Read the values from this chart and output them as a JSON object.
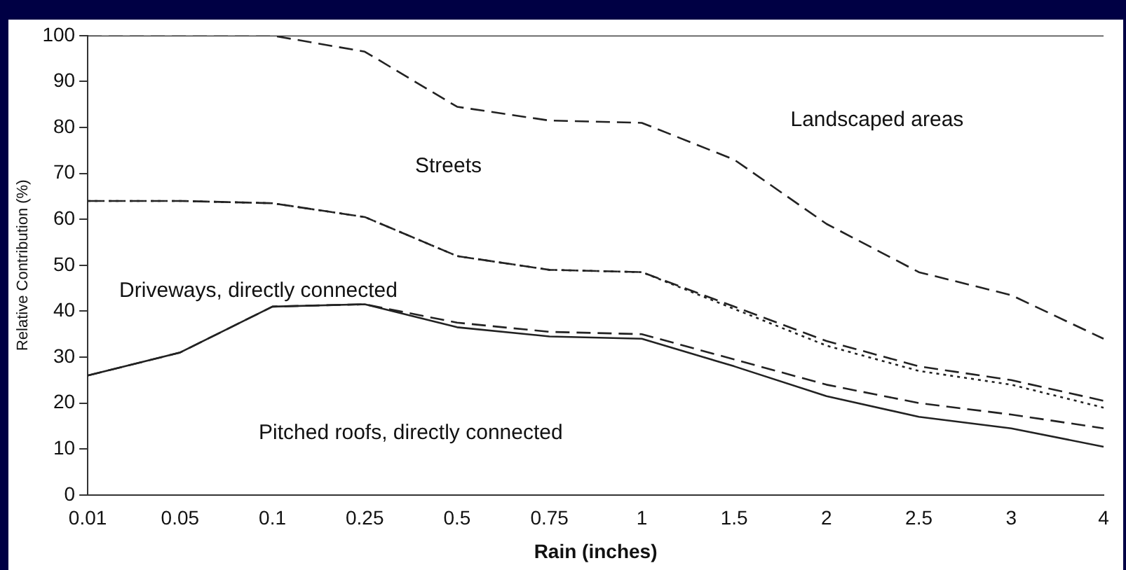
{
  "chart_data": {
    "type": "line",
    "xlabel": "Rain (inches)",
    "ylabel": "Relative Contribution (%)",
    "categories": [
      "0.01",
      "0.05",
      "0.1",
      "0.25",
      "0.5",
      "0.75",
      "1",
      "1.5",
      "2",
      "2.5",
      "3",
      "4"
    ],
    "ylim": [
      0,
      100
    ],
    "yticks": [
      0,
      10,
      20,
      30,
      40,
      50,
      60,
      70,
      80,
      90,
      100
    ],
    "grid": false,
    "legend": false,
    "marker": "none",
    "series": [
      {
        "color": "#222222",
        "line_style": "solid",
        "values": [
          100,
          100,
          100,
          100,
          100,
          100,
          100,
          100,
          100,
          100,
          100,
          100
        ]
      },
      {
        "color": "#222222",
        "line_style": "dashed",
        "values": [
          100,
          100,
          100,
          96.5,
          84.5,
          81.5,
          81,
          73,
          59,
          48.5,
          43.5,
          34
        ]
      },
      {
        "color": "#222222",
        "line_style": "dashed",
        "values": [
          64,
          64,
          63.5,
          60.5,
          52,
          49,
          48.5,
          41,
          33.5,
          28,
          25,
          20.5
        ]
      },
      {
        "color": "#222222",
        "line_style": "dotted",
        "values": [
          64,
          64,
          63.5,
          60.5,
          52,
          49,
          48.5,
          40.5,
          32.5,
          27,
          24,
          19
        ]
      },
      {
        "color": "#222222",
        "line_style": "dashed",
        "values": [
          26,
          31,
          41,
          41.5,
          37.5,
          35.5,
          35,
          29.5,
          24,
          20,
          17.5,
          14.5
        ]
      },
      {
        "color": "#222222",
        "line_style": "solid",
        "values": [
          26,
          31,
          41,
          41.5,
          36.5,
          34.5,
          34,
          28,
          21.5,
          17,
          14.5,
          10.5
        ]
      }
    ],
    "annotations": [
      "Landscaped areas",
      "Streets",
      "Driveways, directly connected",
      "Pitched roofs, directly connected"
    ]
  }
}
